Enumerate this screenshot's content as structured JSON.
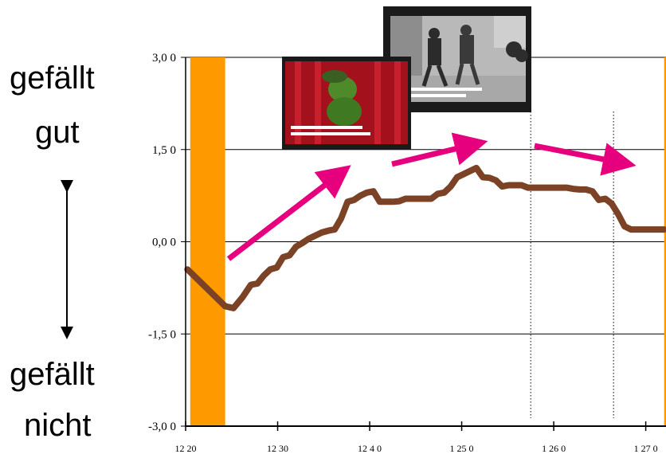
{
  "labels": {
    "top_line1": "gefällt",
    "top_line2": "gut",
    "bottom_line1": "gefällt",
    "bottom_line2": "nicht"
  },
  "colors": {
    "curve": "#7b4226",
    "bars": "#ff9900",
    "arrows": "#e6007e",
    "axis": "#000000"
  },
  "icons": [
    "double-arrow-icon",
    "kermit-video-thumbnail",
    "street-video-thumbnail"
  ],
  "chart_data": {
    "type": "line",
    "title": "",
    "xlabel": "",
    "ylabel": "",
    "ylim": [
      -3,
      3
    ],
    "xlim": [
      1220,
      1272
    ],
    "y_ticks": [
      3,
      1.5,
      0,
      -1.5,
      -3
    ],
    "y_tick_labels": [
      "3,0 0",
      "1,5 0",
      "0,0 0",
      "-1,5 0",
      "-3,0 0"
    ],
    "x_ticks": [
      1220,
      1230,
      1240,
      1250,
      1260,
      1270
    ],
    "x_tick_labels": [
      "12 20",
      "12 30",
      "12 4 0",
      "1 25 0",
      "1 26 0",
      "1 27 0"
    ],
    "grid": "horizontal",
    "vertical_dotted_lines": [
      1257.5,
      1266.5
    ],
    "shaded_bands": [
      [
        1220.5,
        1224.3
      ],
      [
        1272,
        1275
      ]
    ],
    "series": [
      {
        "values_x": [
          1220.2,
          1224.3,
          1225.2,
          1226.2,
          1227.1,
          1227.8,
          1228.5,
          1229.2,
          1229.9,
          1230.6,
          1231.3,
          1232.0,
          1232.7,
          1233.4,
          1234.1,
          1234.8,
          1235.5,
          1236.2,
          1236.9,
          1237.6,
          1238.3,
          1239.0,
          1239.7,
          1240.4,
          1241.1,
          1241.8,
          1242.5,
          1243.2,
          1243.9,
          1244.6,
          1245.3,
          1246.0,
          1246.7,
          1247.4,
          1248.1,
          1248.8,
          1249.5,
          1250.2,
          1250.9,
          1251.6,
          1252.3,
          1253.0,
          1253.7,
          1254.4,
          1255.1,
          1255.8,
          1256.5,
          1257.2,
          1257.9,
          1258.6,
          1259.3,
          1260.0,
          1260.7,
          1261.4,
          1262.1,
          1262.8,
          1263.5,
          1264.2,
          1264.9,
          1265.6,
          1266.3,
          1267.0,
          1267.7,
          1268.4,
          1269.1,
          1269.8,
          1270.5,
          1271.2,
          1272.0
        ],
        "values": [
          -0.45,
          -1.05,
          -1.08,
          -0.9,
          -0.7,
          -0.68,
          -0.55,
          -0.45,
          -0.42,
          -0.25,
          -0.22,
          -0.08,
          -0.02,
          0.05,
          0.1,
          0.15,
          0.18,
          0.2,
          0.38,
          0.65,
          0.68,
          0.75,
          0.8,
          0.82,
          0.65,
          0.65,
          0.65,
          0.66,
          0.7,
          0.7,
          0.7,
          0.7,
          0.7,
          0.78,
          0.8,
          0.9,
          1.05,
          1.1,
          1.15,
          1.2,
          1.05,
          1.04,
          1.0,
          0.9,
          0.92,
          0.92,
          0.92,
          0.88,
          0.88,
          0.88,
          0.88,
          0.88,
          0.88,
          0.88,
          0.86,
          0.85,
          0.85,
          0.82,
          0.68,
          0.7,
          0.62,
          0.45,
          0.25,
          0.2,
          0.2,
          0.2,
          0.2,
          0.2,
          0.2
        ]
      }
    ]
  }
}
